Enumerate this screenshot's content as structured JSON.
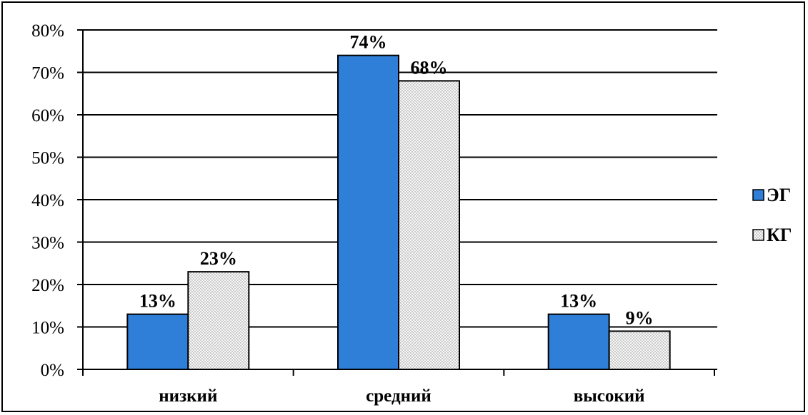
{
  "chart_data": {
    "type": "bar",
    "title": "",
    "xlabel": "",
    "ylabel": "",
    "categories": [
      "низкий",
      "средний",
      "высокий"
    ],
    "series": [
      {
        "name": "ЭГ",
        "values": [
          13,
          74,
          13
        ],
        "labels": [
          "13%",
          "74%",
          "13%"
        ],
        "color": "#2f7fd8",
        "pattern": "solid"
      },
      {
        "name": "КГ",
        "values": [
          23,
          68,
          9
        ],
        "labels": [
          "23%",
          "68%",
          "9%"
        ],
        "color": "#f2f2f2",
        "pattern": "dotted"
      }
    ],
    "ylim": [
      0,
      80
    ],
    "yticks": [
      0,
      10,
      20,
      30,
      40,
      50,
      60,
      70,
      80
    ],
    "ytick_labels": [
      "0%",
      "10%",
      "20%",
      "30%",
      "40%",
      "50%",
      "60%",
      "70%",
      "80%"
    ],
    "grid": true,
    "legend_position": "right"
  }
}
